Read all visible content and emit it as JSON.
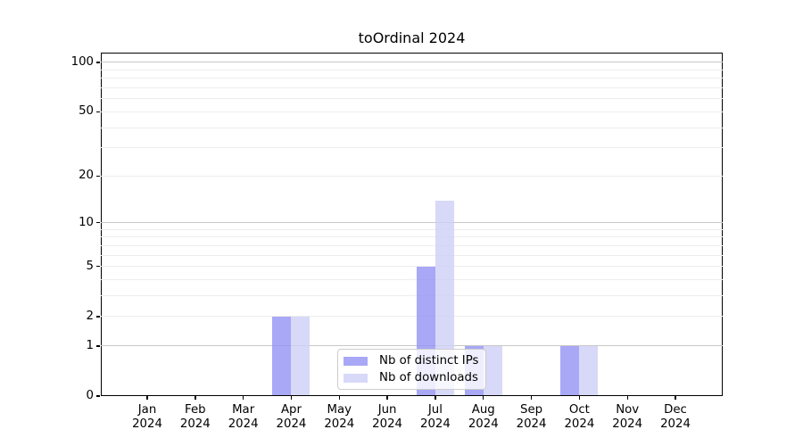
{
  "chart_data": {
    "type": "bar",
    "title": "toOrdinal 2024",
    "categories": [
      "Jan",
      "Feb",
      "Mar",
      "Apr",
      "May",
      "Jun",
      "Jul",
      "Aug",
      "Sep",
      "Oct",
      "Nov",
      "Dec"
    ],
    "x_year": "2024",
    "series": [
      {
        "name": "Nb of distinct IPs",
        "color": "rgba(146,146,245,0.8)",
        "values": [
          0,
          0,
          0,
          2,
          0,
          0,
          5,
          1,
          0,
          1,
          0,
          0
        ]
      },
      {
        "name": "Nb of downloads",
        "color": "rgba(206,206,248,0.8)",
        "values": [
          0,
          0,
          0,
          2,
          0,
          0,
          14,
          1,
          0,
          1,
          0,
          0
        ]
      }
    ],
    "y_axis": {
      "scale": "log1p",
      "tick_labels": [
        0,
        1,
        2,
        5,
        10,
        20,
        50,
        100
      ],
      "major_grid": [
        1,
        10,
        100
      ],
      "minor_grid": [
        2,
        3,
        4,
        5,
        6,
        7,
        8,
        9,
        20,
        30,
        40,
        50,
        60,
        70,
        80,
        90
      ],
      "ylim": [
        0,
        115
      ],
      "grid": "on"
    },
    "legend": {
      "position": "lower center"
    }
  }
}
